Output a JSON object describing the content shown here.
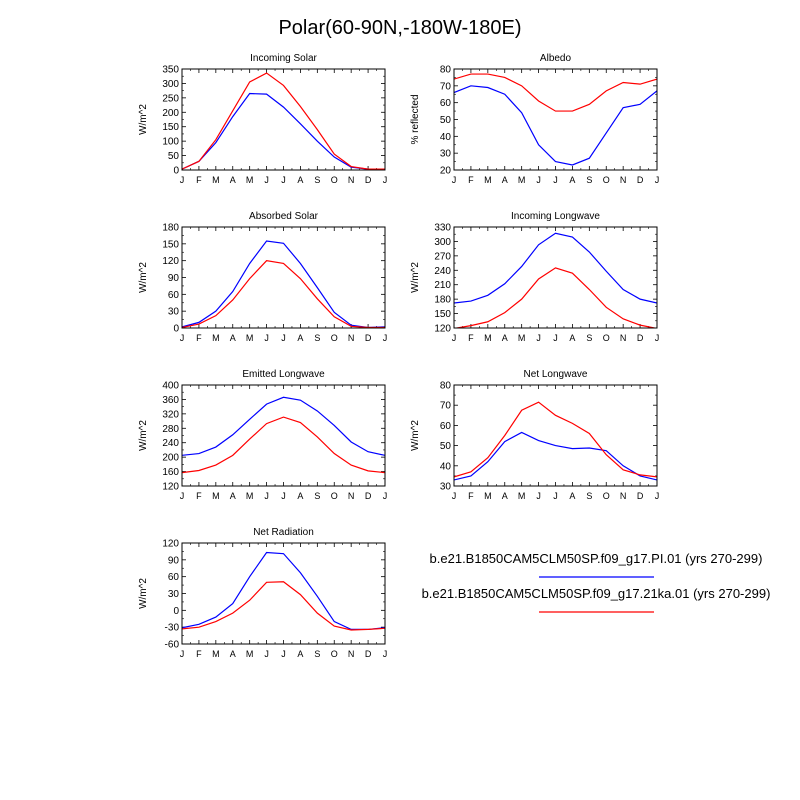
{
  "figure": {
    "title": "Polar(60-90N,-180W-180E)"
  },
  "legend": [
    {
      "label": "b.e21.B1850CAM5CLM50SP.f09_g17.PI.01 (yrs 270-299)",
      "color": "#0000ff"
    },
    {
      "label": "b.e21.B1850CAM5CLM50SP.f09_g17.21ka.01 (yrs 270-299)",
      "color": "#ff0000"
    }
  ],
  "chart_data": [
    {
      "type": "line",
      "title": "Incoming Solar",
      "ylabel": "W/m^2",
      "xlabel": "",
      "categories": [
        "J",
        "F",
        "M",
        "A",
        "M",
        "J",
        "J",
        "A",
        "S",
        "O",
        "N",
        "D",
        "J"
      ],
      "ylim": [
        0,
        350
      ],
      "yticks": [
        "0",
        "50",
        "100",
        "150",
        "200",
        "250",
        "300",
        "350"
      ],
      "series": [
        {
          "name": "PI",
          "color": "#0000ff",
          "values": [
            3,
            30,
            95,
            185,
            265,
            263,
            218,
            160,
            100,
            45,
            10,
            3,
            3
          ]
        },
        {
          "name": "21ka",
          "color": "#ff0000",
          "values": [
            3,
            30,
            105,
            205,
            305,
            336,
            293,
            220,
            140,
            55,
            12,
            3,
            3
          ]
        }
      ]
    },
    {
      "type": "line",
      "title": "Albedo",
      "ylabel": "% reflected",
      "xlabel": "",
      "categories": [
        "J",
        "F",
        "M",
        "A",
        "M",
        "J",
        "J",
        "A",
        "S",
        "O",
        "N",
        "D",
        "J"
      ],
      "ylim": [
        20,
        80
      ],
      "yticks": [
        "20",
        "30",
        "40",
        "50",
        "60",
        "70",
        "80"
      ],
      "series": [
        {
          "name": "PI",
          "color": "#0000ff",
          "values": [
            66,
            70,
            69,
            65,
            54,
            35,
            25,
            23,
            27,
            42,
            57,
            59,
            67
          ]
        },
        {
          "name": "21ka",
          "color": "#ff0000",
          "values": [
            74,
            77,
            77,
            75,
            70,
            61,
            55,
            55,
            59,
            67,
            72,
            71,
            74
          ]
        }
      ]
    },
    {
      "type": "line",
      "title": "Absorbed Solar",
      "ylabel": "W/m^2",
      "xlabel": "",
      "categories": [
        "J",
        "F",
        "M",
        "A",
        "M",
        "J",
        "J",
        "A",
        "S",
        "O",
        "N",
        "D",
        "J"
      ],
      "ylim": [
        0,
        180
      ],
      "yticks": [
        "0",
        "30",
        "60",
        "90",
        "120",
        "150",
        "180"
      ],
      "series": [
        {
          "name": "PI",
          "color": "#0000ff",
          "values": [
            2,
            10,
            30,
            65,
            115,
            155,
            151,
            115,
            72,
            28,
            5,
            1,
            2
          ]
        },
        {
          "name": "21ka",
          "color": "#ff0000",
          "values": [
            1,
            7,
            22,
            50,
            88,
            120,
            115,
            88,
            52,
            20,
            3,
            1,
            1
          ]
        }
      ]
    },
    {
      "type": "line",
      "title": "Incoming Longwave",
      "ylabel": "W/m^2",
      "xlabel": "",
      "categories": [
        "J",
        "F",
        "M",
        "A",
        "M",
        "J",
        "J",
        "A",
        "S",
        "O",
        "N",
        "D",
        "J"
      ],
      "ylim": [
        120,
        330
      ],
      "yticks": [
        "120",
        "150",
        "180",
        "210",
        "240",
        "270",
        "300",
        "330"
      ],
      "series": [
        {
          "name": "PI",
          "color": "#0000ff",
          "values": [
            172,
            176,
            188,
            212,
            248,
            293,
            317,
            309,
            278,
            238,
            200,
            180,
            172
          ]
        },
        {
          "name": "21ka",
          "color": "#ff0000",
          "values": [
            119,
            125,
            133,
            152,
            180,
            222,
            245,
            234,
            200,
            163,
            139,
            126,
            119
          ]
        }
      ]
    },
    {
      "type": "line",
      "title": "Emitted Longwave",
      "ylabel": "W/m^2",
      "xlabel": "",
      "categories": [
        "J",
        "F",
        "M",
        "A",
        "M",
        "J",
        "J",
        "A",
        "S",
        "O",
        "N",
        "D",
        "J"
      ],
      "ylim": [
        120,
        400
      ],
      "yticks": [
        "120",
        "160",
        "200",
        "240",
        "280",
        "320",
        "360",
        "400"
      ],
      "series": [
        {
          "name": "PI",
          "color": "#0000ff",
          "values": [
            205,
            210,
            228,
            262,
            305,
            347,
            366,
            358,
            328,
            288,
            242,
            215,
            205
          ]
        },
        {
          "name": "21ka",
          "color": "#ff0000",
          "values": [
            157,
            163,
            178,
            205,
            250,
            293,
            311,
            296,
            256,
            210,
            178,
            162,
            157
          ]
        }
      ]
    },
    {
      "type": "line",
      "title": "Net Longwave",
      "ylabel": "W/m^2",
      "xlabel": "",
      "categories": [
        "J",
        "F",
        "M",
        "A",
        "M",
        "J",
        "J",
        "A",
        "S",
        "O",
        "N",
        "D",
        "J"
      ],
      "ylim": [
        30,
        80
      ],
      "yticks": [
        "30",
        "40",
        "50",
        "60",
        "70",
        "80"
      ],
      "series": [
        {
          "name": "PI",
          "color": "#0000ff",
          "values": [
            33,
            35,
            42,
            52,
            56.5,
            52.5,
            50,
            48.5,
            48.8,
            47.5,
            40,
            35,
            33
          ]
        },
        {
          "name": "21ka",
          "color": "#ff0000",
          "values": [
            34.5,
            37,
            44,
            55,
            67.5,
            71.5,
            65,
            61,
            56,
            45.5,
            38,
            35.5,
            34.5
          ]
        }
      ]
    },
    {
      "type": "line",
      "title": "Net Radiation",
      "ylabel": "W/m^2",
      "xlabel": "",
      "categories": [
        "J",
        "F",
        "M",
        "A",
        "M",
        "J",
        "J",
        "A",
        "S",
        "O",
        "N",
        "D",
        "J"
      ],
      "ylim": [
        -60,
        120
      ],
      "yticks": [
        "-60",
        "-30",
        "0",
        "30",
        "60",
        "90",
        "120"
      ],
      "series": [
        {
          "name": "PI",
          "color": "#0000ff",
          "values": [
            -31,
            -25,
            -12,
            12,
            60,
            103,
            101,
            67,
            25,
            -20,
            -34,
            -34,
            -31
          ]
        },
        {
          "name": "21ka",
          "color": "#ff0000",
          "values": [
            -33,
            -30,
            -20,
            -5,
            18,
            50,
            51,
            28,
            -5,
            -28,
            -35,
            -34,
            -32
          ]
        }
      ]
    }
  ]
}
